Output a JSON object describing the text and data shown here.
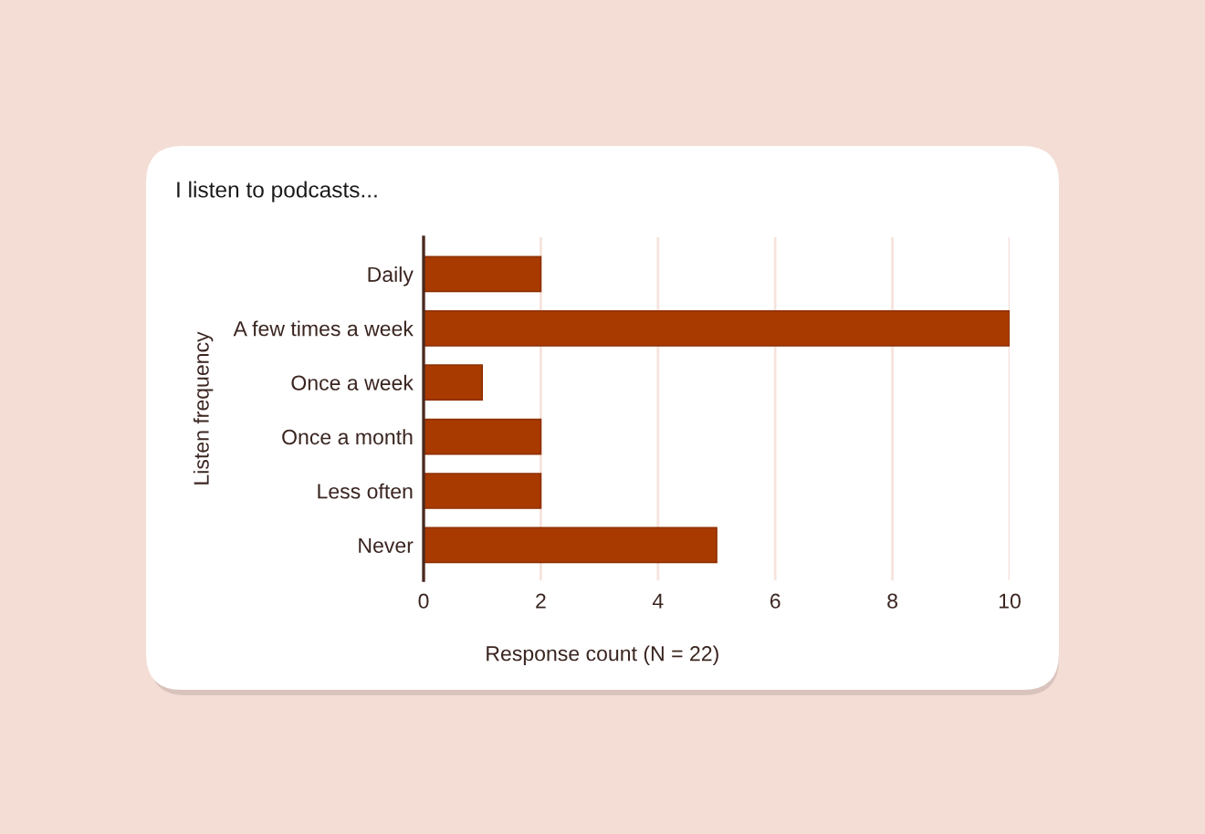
{
  "chart_data": {
    "type": "bar",
    "orientation": "horizontal",
    "title": "I listen to podcasts...",
    "xlabel": "Response count (N = 22)",
    "ylabel": "Listen frequency",
    "categories": [
      "Daily",
      "A few times a week",
      "Once a week",
      "Once a month",
      "Less often",
      "Never"
    ],
    "values": [
      2,
      10,
      1,
      2,
      2,
      5
    ],
    "color": "#a83a00",
    "xlim": [
      0,
      10
    ],
    "xticks": [
      0,
      2,
      4,
      6,
      8,
      10
    ],
    "grid": "x"
  }
}
